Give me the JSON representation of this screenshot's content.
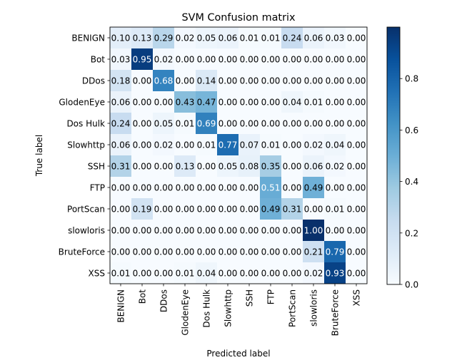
{
  "chart_data": {
    "type": "heatmap",
    "title": "SVM Confusion matrix",
    "xlabel": "Predicted label",
    "ylabel": "True label",
    "x_categories": [
      "BENIGN",
      "Bot",
      "DDos",
      "GlodenEye",
      "Dos Hulk",
      "Slowhttp",
      "SSH",
      "FTP",
      "PortScan",
      "slowloris",
      "BruteForce",
      "XSS"
    ],
    "y_categories": [
      "BENIGN",
      "Bot",
      "DDos",
      "GlodenEye",
      "Dos Hulk",
      "Slowhttp",
      "SSH",
      "FTP",
      "PortScan",
      "slowloris",
      "BruteForce",
      "XSS"
    ],
    "values": [
      [
        0.1,
        0.13,
        0.29,
        0.02,
        0.05,
        0.06,
        0.01,
        0.01,
        0.24,
        0.06,
        0.03,
        0.0
      ],
      [
        0.03,
        0.95,
        0.02,
        0.0,
        0.0,
        0.0,
        0.0,
        0.0,
        0.0,
        0.0,
        0.0,
        0.0
      ],
      [
        0.18,
        0.0,
        0.68,
        0.0,
        0.14,
        0.0,
        0.0,
        0.0,
        0.0,
        0.0,
        0.0,
        0.0
      ],
      [
        0.06,
        0.0,
        0.0,
        0.43,
        0.47,
        0.0,
        0.0,
        0.0,
        0.04,
        0.01,
        0.0,
        0.0
      ],
      [
        0.24,
        0.0,
        0.05,
        0.01,
        0.69,
        0.0,
        0.0,
        0.0,
        0.0,
        0.0,
        0.0,
        0.0
      ],
      [
        0.06,
        0.0,
        0.02,
        0.0,
        0.01,
        0.77,
        0.07,
        0.01,
        0.0,
        0.02,
        0.04,
        0.0
      ],
      [
        0.31,
        0.0,
        0.0,
        0.13,
        0.0,
        0.05,
        0.08,
        0.35,
        0.0,
        0.06,
        0.02,
        0.0
      ],
      [
        0.0,
        0.0,
        0.0,
        0.0,
        0.0,
        0.0,
        0.0,
        0.51,
        0.0,
        0.49,
        0.0,
        0.0
      ],
      [
        0.0,
        0.19,
        0.0,
        0.0,
        0.0,
        0.0,
        0.0,
        0.49,
        0.31,
        0.0,
        0.01,
        0.0
      ],
      [
        0.0,
        0.0,
        0.0,
        0.0,
        0.0,
        0.0,
        0.0,
        0.0,
        0.0,
        1.0,
        0.0,
        0.0
      ],
      [
        0.0,
        0.0,
        0.0,
        0.0,
        0.0,
        0.0,
        0.0,
        0.0,
        0.0,
        0.21,
        0.79,
        0.0
      ],
      [
        0.01,
        0.0,
        0.0,
        0.01,
        0.04,
        0.0,
        0.0,
        0.0,
        0.0,
        0.02,
        0.93,
        0.0
      ]
    ],
    "colorbar": {
      "colormap": "Blues",
      "range": [
        0,
        1
      ],
      "ticks": [
        "0.0",
        "0.2",
        "0.4",
        "0.6",
        "0.8"
      ]
    },
    "grid": false
  }
}
